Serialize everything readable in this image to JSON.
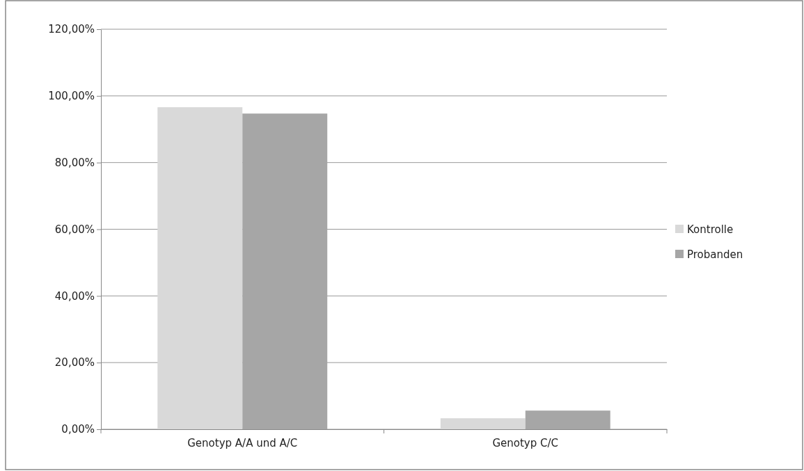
{
  "chart_data": {
    "type": "bar",
    "categories": [
      "Genotyp A/A und A/C",
      "Genotyp C/C"
    ],
    "series": [
      {
        "name": "Kontrolle",
        "color": "#d9d9d9",
        "values": [
          96.6,
          3.3
        ]
      },
      {
        "name": "Probanden",
        "color": "#a6a6a6",
        "values": [
          94.7,
          5.6
        ]
      }
    ],
    "ylim": [
      0,
      120
    ],
    "yticks": [
      {
        "value": 0,
        "label": "0,00%"
      },
      {
        "value": 20,
        "label": "20,00%"
      },
      {
        "value": 40,
        "label": "40,00%"
      },
      {
        "value": 60,
        "label": "60,00%"
      },
      {
        "value": 80,
        "label": "80,00%"
      },
      {
        "value": 100,
        "label": "100,00%"
      },
      {
        "value": 120,
        "label": "120,00%"
      }
    ],
    "grid": "y",
    "legend": "right"
  }
}
